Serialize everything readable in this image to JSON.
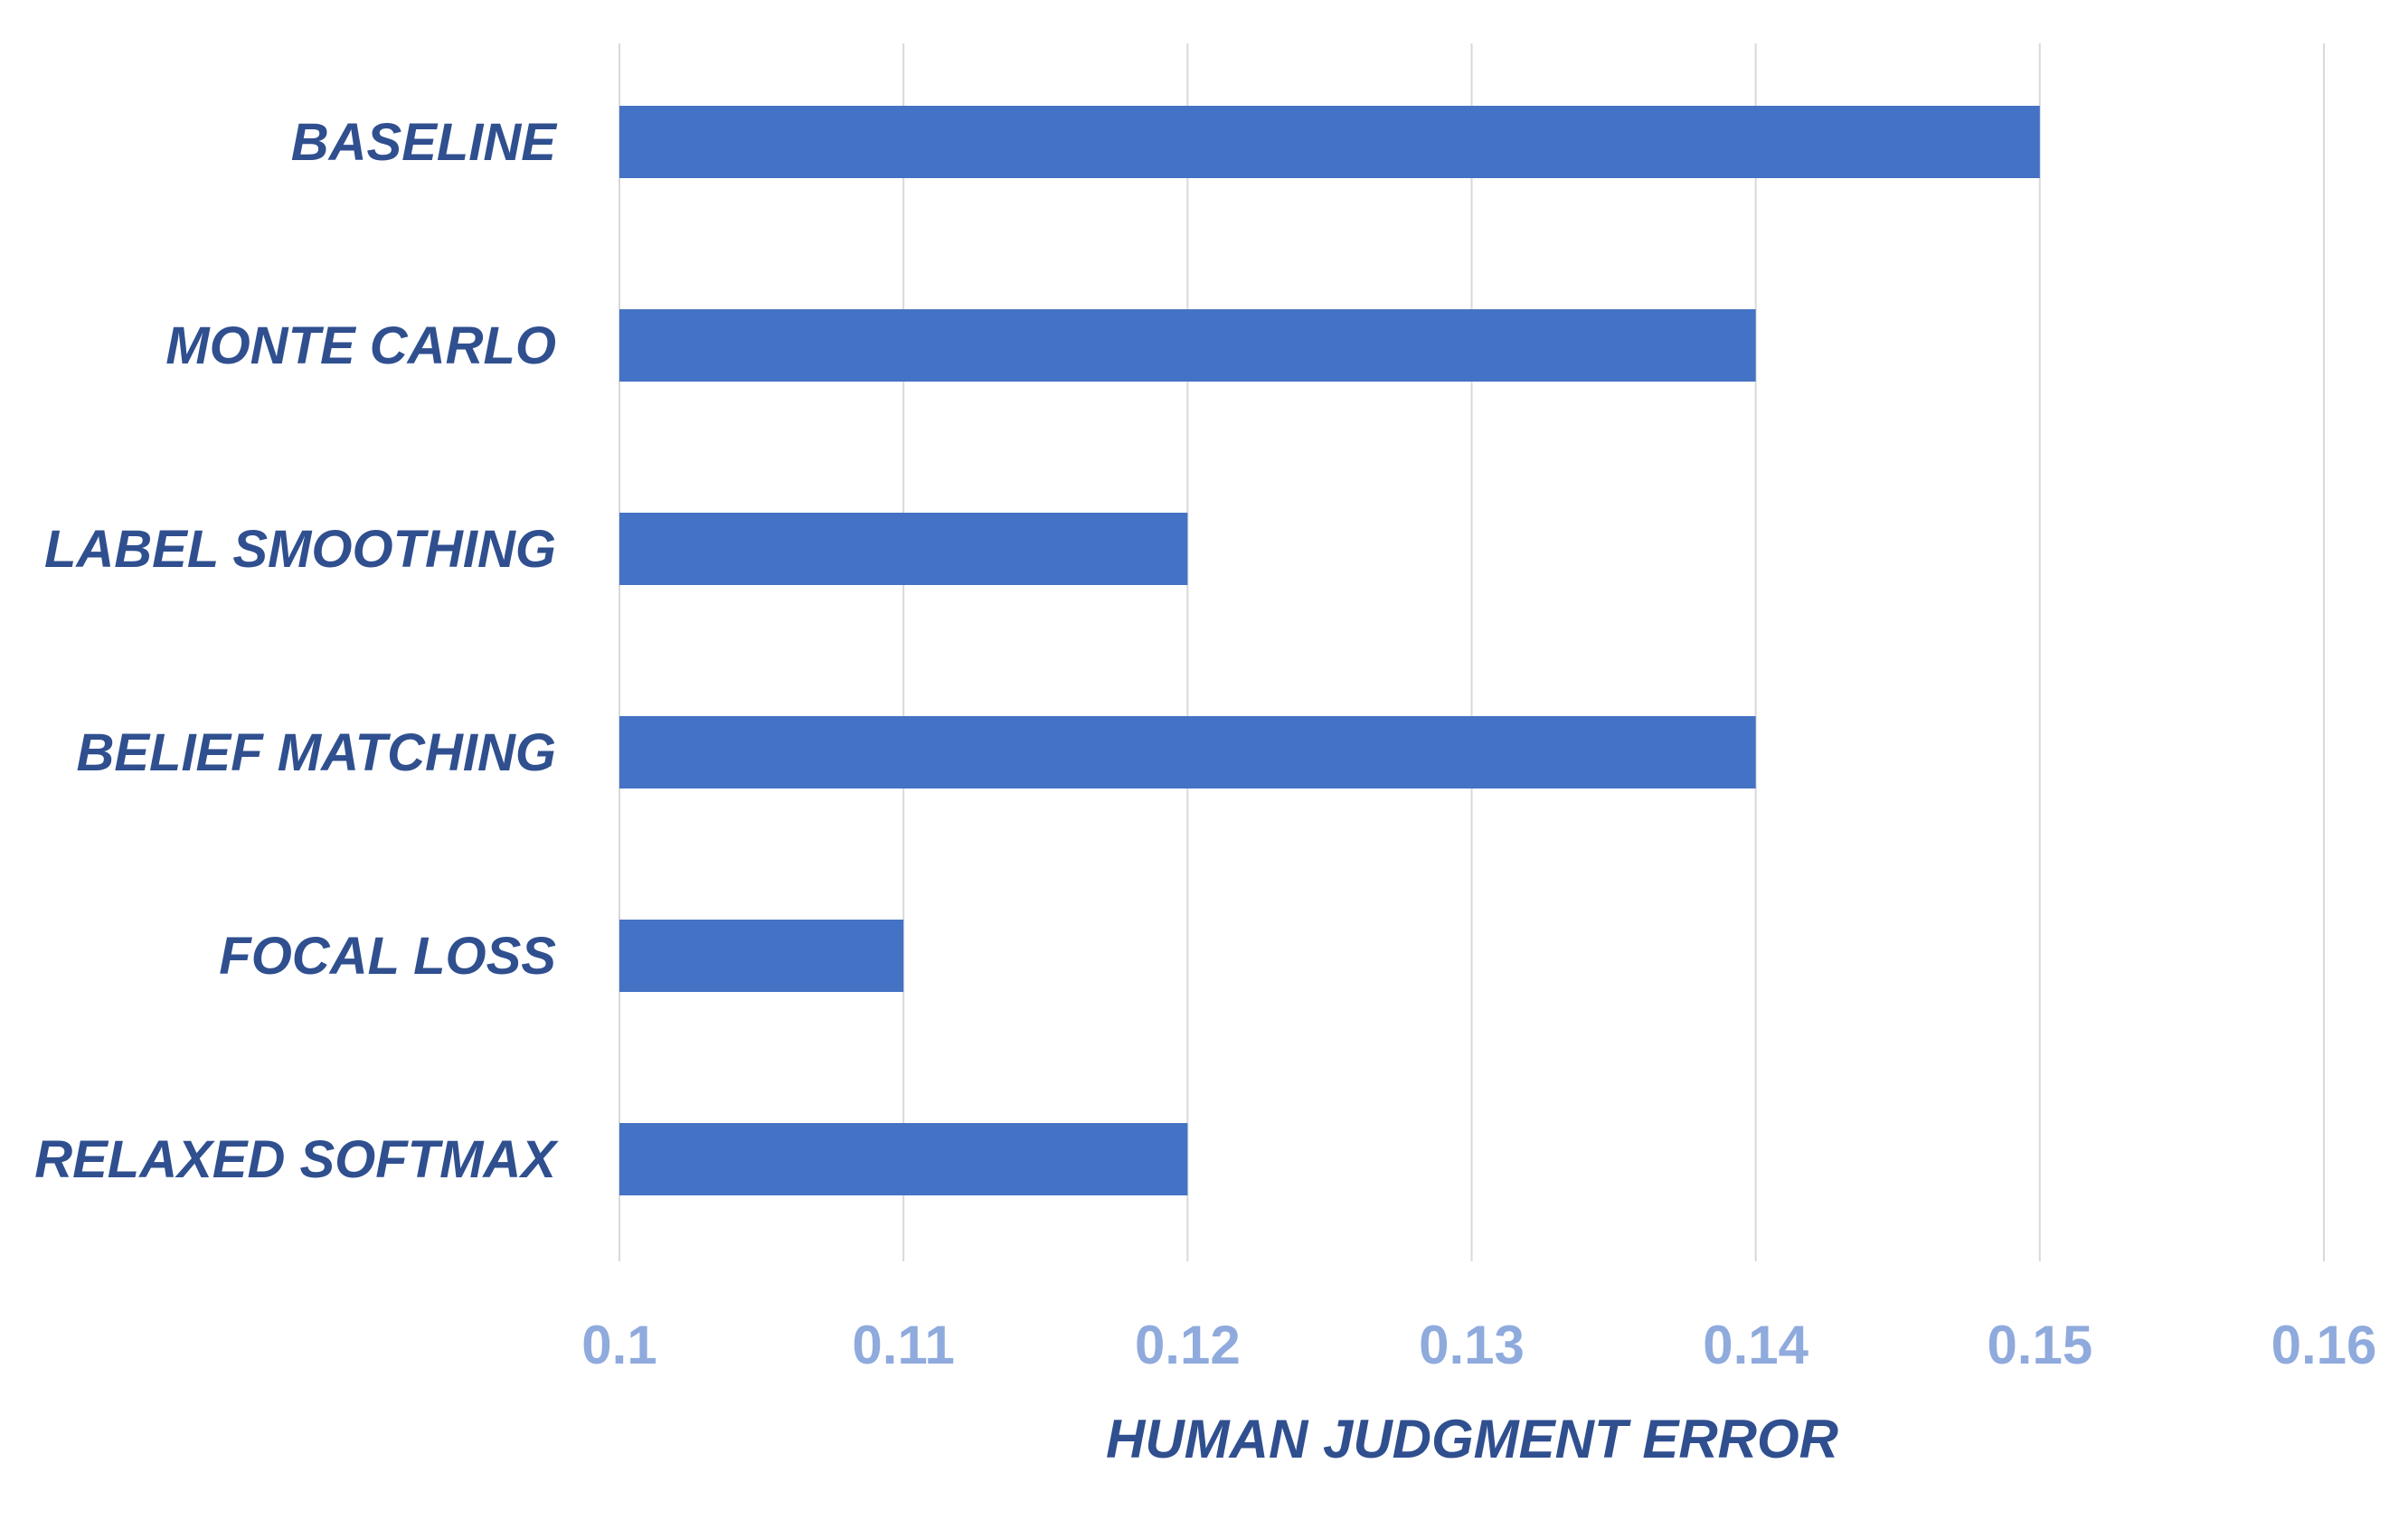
{
  "chart_data": {
    "type": "bar",
    "orientation": "horizontal",
    "categories": [
      "BASELINE",
      "MONTE CARLO",
      "LABEL SMOOTHING",
      "BELIEF MATCHING",
      "FOCAL LOSS",
      "RELAXED SOFTMAX"
    ],
    "values": [
      0.15,
      0.14,
      0.12,
      0.14,
      0.11,
      0.12
    ],
    "xlim": [
      0.1,
      0.16
    ],
    "xticks": [
      0.1,
      0.11,
      0.12,
      0.13,
      0.14,
      0.15,
      0.16
    ],
    "xtick_labels": [
      "0.1",
      "0.11",
      "0.12",
      "0.13",
      "0.14",
      "0.15",
      "0.16"
    ],
    "xlabel": "HUMAN JUDGMENT ERROR",
    "ylabel": "",
    "title": "",
    "grid": "vertical",
    "legend": "none",
    "colors": {
      "bar": "#4472c4",
      "gridline": "#d9d9d9",
      "category_label": "#2f4f8f",
      "tick_label": "#8faadc",
      "axis_title": "#2f4f8f"
    }
  }
}
